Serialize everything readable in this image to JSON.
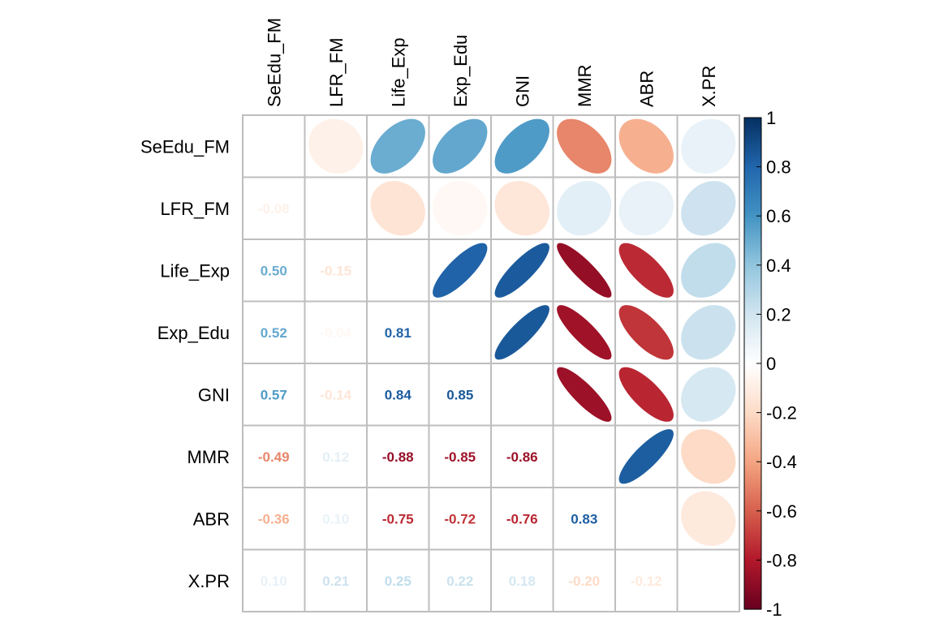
{
  "chart_data": {
    "type": "heatmap",
    "variables": [
      "SeEdu_FM",
      "LFR_FM",
      "Life_Exp",
      "Exp_Edu",
      "GNI",
      "MMR",
      "ABR",
      "X.PR"
    ],
    "matrix": [
      [
        1.0,
        -0.08,
        0.5,
        0.52,
        0.57,
        -0.49,
        -0.36,
        0.1
      ],
      [
        -0.08,
        1.0,
        -0.15,
        -0.04,
        -0.14,
        0.12,
        0.1,
        0.21
      ],
      [
        0.5,
        -0.15,
        1.0,
        0.81,
        0.84,
        -0.88,
        -0.75,
        0.25
      ],
      [
        0.52,
        -0.04,
        0.81,
        1.0,
        0.85,
        -0.85,
        -0.72,
        0.22
      ],
      [
        0.57,
        -0.14,
        0.84,
        0.85,
        1.0,
        -0.86,
        -0.76,
        0.18
      ],
      [
        -0.49,
        0.12,
        -0.88,
        -0.85,
        -0.86,
        1.0,
        0.83,
        -0.2
      ],
      [
        -0.36,
        0.1,
        -0.75,
        -0.72,
        -0.76,
        0.83,
        1.0,
        -0.12
      ],
      [
        0.1,
        0.21,
        0.25,
        0.22,
        0.18,
        -0.2,
        -0.12,
        1.0
      ]
    ],
    "labels": [
      [
        "",
        "",
        "",
        "",
        "",
        "",
        "",
        ""
      ],
      [
        "-0.08",
        "",
        "",
        "",
        "",
        "",
        "",
        ""
      ],
      [
        "0.50",
        "-0.15",
        "",
        "",
        "",
        "",
        "",
        ""
      ],
      [
        "0.52",
        "-0.04",
        "0.81",
        "",
        "",
        "",
        "",
        ""
      ],
      [
        "0.57",
        "-0.14",
        "0.84",
        "0.85",
        "",
        "",
        "",
        ""
      ],
      [
        "-0.49",
        "0.12",
        "-0.88",
        "-0.85",
        "-0.86",
        "",
        "",
        ""
      ],
      [
        "-0.36",
        "0.10",
        "-0.75",
        "-0.72",
        "-0.76",
        "0.83",
        "",
        ""
      ],
      [
        "0.10",
        "0.21",
        "0.25",
        "0.22",
        "0.18",
        "-0.20",
        "-0.12",
        ""
      ]
    ],
    "upper_method": "ellipse",
    "lower_method": "number",
    "diagonal": "blank",
    "colorbar": {
      "range": [
        -1,
        1
      ],
      "ticks": [
        "1",
        "0.8",
        "0.6",
        "0.4",
        "0.2",
        "0",
        "-0.2",
        "-0.4",
        "-0.6",
        "-0.8",
        "-1"
      ],
      "tick_values": [
        1,
        0.8,
        0.6,
        0.4,
        0.2,
        0,
        -0.2,
        -0.4,
        -0.6,
        -0.8,
        -1
      ],
      "placement": "right"
    },
    "palette": [
      "#67001F",
      "#B2182B",
      "#D6604D",
      "#F4A582",
      "#FDDBC7",
      "#FFFFFF",
      "#D1E5F0",
      "#92C5DE",
      "#4393C3",
      "#2166AC",
      "#053061"
    ],
    "grid": true,
    "grid_color": "#bebebe"
  }
}
